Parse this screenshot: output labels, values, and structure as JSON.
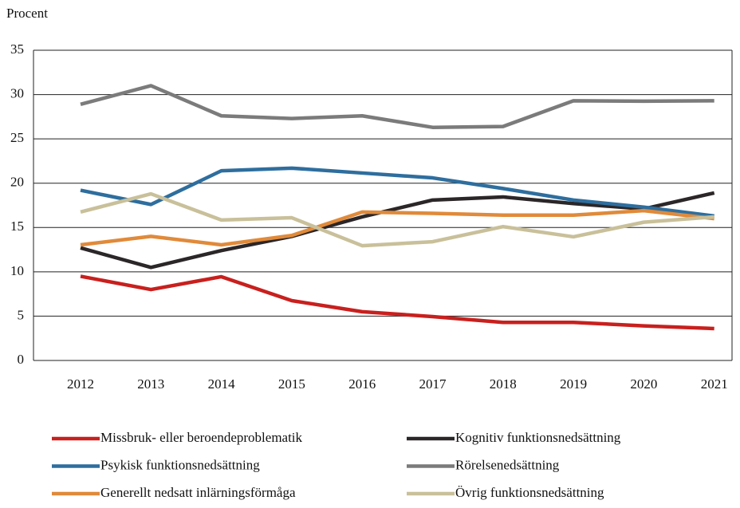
{
  "chart_data": {
    "type": "line",
    "y_label": "Procent",
    "categories": [
      "2012",
      "2013",
      "2014",
      "2015",
      "2016",
      "2017",
      "2018",
      "2019",
      "2020",
      "2021"
    ],
    "ylim": [
      0,
      35
    ],
    "yticks": [
      0,
      5,
      10,
      15,
      20,
      25,
      30,
      35
    ],
    "grid": true,
    "series": [
      {
        "name": "Missbruk- eller beroendeproblematik",
        "color": "#c8201e",
        "values": [
          9.5,
          8.0,
          9.45,
          6.75,
          5.5,
          4.95,
          4.3,
          4.3,
          3.9,
          3.6
        ]
      },
      {
        "name": "Kognitiv funktionsnedsättning",
        "color": "#2b2628",
        "values": [
          12.7,
          10.5,
          12.4,
          14.0,
          16.2,
          18.1,
          18.45,
          17.7,
          17.1,
          18.9
        ]
      },
      {
        "name": "Psykisk funktionsnedsättning",
        "color": "#2e6e9e",
        "values": [
          19.2,
          17.6,
          21.4,
          21.7,
          21.15,
          20.6,
          19.4,
          18.1,
          17.3,
          16.3
        ]
      },
      {
        "name": "Rörelsenedsättning",
        "color": "#7b7b7b",
        "values": [
          28.9,
          31.0,
          27.6,
          27.3,
          27.6,
          26.3,
          26.4,
          29.3,
          29.25,
          29.3
        ]
      },
      {
        "name": "Generellt nedsatt inlärningsförmåga",
        "color": "#e08a3a",
        "values": [
          13.05,
          14.0,
          13.05,
          14.1,
          16.75,
          16.6,
          16.4,
          16.4,
          16.9,
          16.0
        ]
      },
      {
        "name": "Övrig funktionsnedsättning",
        "color": "#c9c09a",
        "values": [
          16.75,
          18.8,
          15.85,
          16.1,
          12.95,
          13.4,
          15.1,
          13.95,
          15.6,
          16.2
        ]
      }
    ]
  }
}
